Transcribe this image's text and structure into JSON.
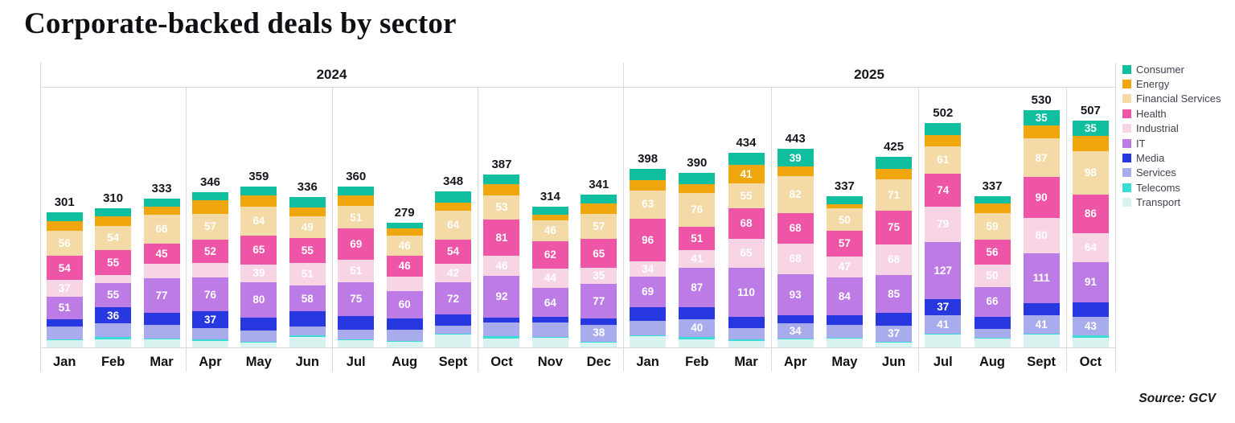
{
  "title": "Corporate-backed deals by sector",
  "source": "Source: GCV",
  "year_groups": [
    {
      "label": "2024",
      "months": 12
    },
    {
      "label": "2025",
      "months": 10
    }
  ],
  "chart_data": {
    "type": "bar",
    "subtype": "stacked",
    "title": "Corporate-backed deals by sector",
    "xlabel": "",
    "ylabel": "",
    "grid": "quarter vertical separators, light gray",
    "legend_position": "right",
    "label_min_value": 34,
    "categories": [
      "Jan",
      "Feb",
      "Mar",
      "Apr",
      "May",
      "Jun",
      "Jul",
      "Aug",
      "Sept",
      "Oct",
      "Nov",
      "Dec",
      "Jan",
      "Feb",
      "Mar",
      "Apr",
      "May",
      "Jun",
      "Jul",
      "Aug",
      "Sept",
      "Oct"
    ],
    "category_years": [
      "2024",
      "2024",
      "2024",
      "2024",
      "2024",
      "2024",
      "2024",
      "2024",
      "2024",
      "2024",
      "2024",
      "2024",
      "2025",
      "2025",
      "2025",
      "2025",
      "2025",
      "2025",
      "2025",
      "2025",
      "2025",
      "2025"
    ],
    "totals": [
      301,
      310,
      333,
      346,
      359,
      336,
      360,
      279,
      348,
      387,
      314,
      341,
      398,
      390,
      434,
      443,
      337,
      425,
      502,
      337,
      530,
      507
    ],
    "series": [
      {
        "name": "Consumer",
        "color": "#10bfa0",
        "values": [
          19,
          18,
          18,
          18,
          20,
          23,
          20,
          13,
          25,
          22,
          18,
          20,
          24,
          25,
          27,
          39,
          17,
          27,
          28,
          15,
          35,
          35
        ]
      },
      {
        "name": "Energy",
        "color": "#f0a70d",
        "values": [
          22,
          21,
          18,
          30,
          25,
          20,
          24,
          16,
          18,
          26,
          12,
          22,
          23,
          20,
          41,
          22,
          10,
          22,
          25,
          22,
          28,
          33
        ]
      },
      {
        "name": "Financial Services",
        "color": "#f3daa6",
        "values": [
          56,
          54,
          66,
          57,
          64,
          49,
          51,
          46,
          64,
          53,
          46,
          57,
          63,
          76,
          55,
          82,
          50,
          71,
          61,
          59,
          87,
          98
        ]
      },
      {
        "name": "Health",
        "color": "#ee55a6",
        "values": [
          54,
          55,
          45,
          52,
          65,
          55,
          69,
          46,
          54,
          81,
          62,
          65,
          96,
          51,
          68,
          68,
          57,
          75,
          74,
          56,
          90,
          86
        ]
      },
      {
        "name": "Industrial",
        "color": "#f7d5e5",
        "values": [
          37,
          18,
          32,
          33,
          39,
          51,
          51,
          33,
          42,
          46,
          44,
          35,
          34,
          41,
          65,
          68,
          47,
          68,
          79,
          50,
          80,
          64
        ]
      },
      {
        "name": "IT",
        "color": "#bd7be5",
        "values": [
          51,
          55,
          77,
          76,
          80,
          58,
          75,
          60,
          72,
          92,
          64,
          77,
          69,
          87,
          110,
          93,
          84,
          85,
          127,
          66,
          111,
          91
        ]
      },
      {
        "name": "Media",
        "color": "#2738e0",
        "values": [
          16,
          36,
          27,
          37,
          28,
          33,
          30,
          25,
          25,
          12,
          12,
          14,
          30,
          27,
          25,
          18,
          22,
          28,
          37,
          28,
          27,
          31
        ]
      },
      {
        "name": "Services",
        "color": "#a8abec",
        "values": [
          28,
          30,
          30,
          25,
          25,
          20,
          22,
          25,
          18,
          30,
          33,
          38,
          32,
          40,
          25,
          34,
          28,
          37,
          41,
          20,
          41,
          43
        ]
      },
      {
        "name": "Telecoms",
        "color": "#3cdcd6",
        "values": [
          2,
          5,
          3,
          3,
          2,
          4,
          2,
          2,
          2,
          5,
          2,
          2,
          2,
          5,
          3,
          2,
          2,
          2,
          2,
          2,
          2,
          5
        ]
      },
      {
        "name": "Transport",
        "color": "#d8f2f0",
        "values": [
          16,
          18,
          17,
          15,
          11,
          23,
          16,
          13,
          28,
          20,
          21,
          11,
          25,
          18,
          15,
          17,
          20,
          10,
          28,
          19,
          29,
          21
        ]
      }
    ]
  }
}
